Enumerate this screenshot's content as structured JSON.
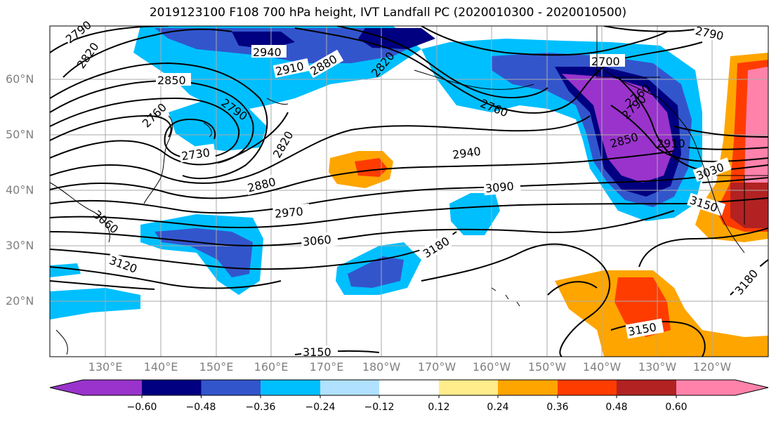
{
  "title": "2019123100 F108 700 hPa height, IVT Landfall PC (2020010300 - 2020010500)",
  "map": {
    "lat_labels": [
      "60°N",
      "50°N",
      "40°N",
      "30°N",
      "20°N"
    ],
    "lon_labels": [
      "130°E",
      "140°E",
      "150°E",
      "160°E",
      "170°E",
      "180°W",
      "170°W",
      "160°W",
      "150°W",
      "140°W",
      "130°W",
      "120°W"
    ],
    "contour_labels": [
      "2790",
      "2820",
      "2940",
      "2910",
      "2880",
      "2820",
      "2850",
      "2760",
      "2790",
      "2730",
      "2820",
      "2760",
      "2700",
      "2790",
      "2760",
      "2790",
      "2850",
      "2910",
      "3030",
      "2940",
      "3090",
      "2880",
      "2970",
      "3150",
      "3060",
      "3060",
      "3180",
      "3120",
      "3180",
      "3150",
      "3150"
    ]
  },
  "colorbar": {
    "tick_labels": [
      "−0.60",
      "−0.48",
      "−0.36",
      "−0.24",
      "−0.12",
      "0.12",
      "0.24",
      "0.36",
      "0.48",
      "0.60"
    ],
    "colors": [
      "#9933cc",
      "#000080",
      "#3355cc",
      "#00bfff",
      "#b0e2ff",
      "#ffffff",
      "#ffec8b",
      "#ffa500",
      "#ff3c00",
      "#b22222",
      "#ff82ab"
    ]
  }
}
